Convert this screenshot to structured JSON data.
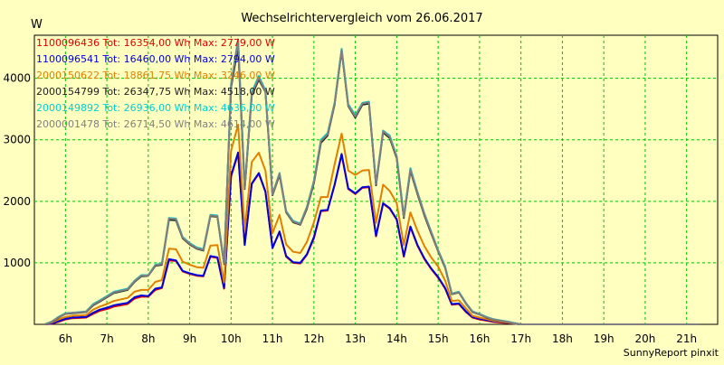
{
  "chart_data": {
    "type": "line",
    "title": "Wechselrichtervergleich vom 26.06.2017",
    "ylabel": "W",
    "footer": "SunnyReport pinxit",
    "grid": true,
    "legend_position": "top-left",
    "ylim": [
      0,
      4700
    ],
    "xlim": [
      5.25,
      21.75
    ],
    "yticks": [
      1000,
      2000,
      3000,
      4000
    ],
    "xticks": [
      "6h",
      "7h",
      "8h",
      "9h",
      "10h",
      "11h",
      "12h",
      "13h",
      "14h",
      "15h",
      "16h",
      "17h",
      "18h",
      "19h",
      "20h",
      "21h"
    ],
    "x": [
      5.5,
      5.67,
      5.83,
      6.0,
      6.17,
      6.5,
      6.67,
      6.83,
      7.0,
      7.17,
      7.5,
      7.67,
      7.83,
      8.0,
      8.17,
      8.33,
      8.5,
      8.67,
      8.83,
      9.0,
      9.17,
      9.33,
      9.5,
      9.67,
      9.83,
      10.0,
      10.17,
      10.33,
      10.5,
      10.67,
      10.83,
      11.0,
      11.17,
      11.33,
      11.5,
      11.67,
      11.83,
      12.0,
      12.17,
      12.33,
      12.5,
      12.67,
      12.83,
      13.0,
      13.17,
      13.33,
      13.5,
      13.67,
      13.83,
      14.0,
      14.17,
      14.33,
      14.5,
      14.67,
      14.83,
      15.0,
      15.17,
      15.33,
      15.5,
      15.67,
      15.83,
      16.0,
      16.17,
      16.33,
      16.5,
      16.67,
      16.83,
      17.0,
      17.17,
      17.33,
      17.5,
      17.67,
      17.83,
      18.0,
      18.17,
      18.33,
      18.5,
      18.67,
      18.83,
      19.0,
      19.17,
      19.33,
      19.5,
      19.67,
      19.83,
      20.0,
      20.17,
      20.33,
      20.5,
      20.67,
      20.83,
      21.0,
      21.17,
      21.33
    ],
    "series": [
      {
        "name": "1100096436",
        "legend": "1100096436 Tot: 16354,00 Wh Max: 2779,00 W",
        "color": "#e00000",
        "values": [
          0,
          10,
          40,
          80,
          100,
          110,
          170,
          220,
          250,
          290,
          330,
          420,
          450,
          450,
          560,
          590,
          1040,
          1030,
          860,
          820,
          790,
          780,
          1100,
          1080,
          580,
          2400,
          2779,
          1300,
          2280,
          2450,
          2150,
          1250,
          1500,
          1100,
          1000,
          990,
          1130,
          1400,
          1840,
          1850,
          2260,
          2760,
          2200,
          2120,
          2220,
          2230,
          1430,
          1960,
          1880,
          1700,
          1100,
          1580,
          1280,
          1060,
          900,
          760,
          580,
          320,
          330,
          200,
          110,
          80,
          60,
          40,
          30,
          20,
          10,
          0,
          0,
          0,
          0,
          0,
          0,
          0,
          0,
          0,
          0,
          0,
          0,
          0,
          0,
          0,
          0,
          0,
          0,
          0,
          0,
          0,
          0,
          0,
          0,
          0,
          0,
          0
        ]
      },
      {
        "name": "1100096541",
        "legend": "1100096541 Tot: 16460,00 Wh Max: 2794,00 W",
        "color": "#0000e0",
        "values": [
          0,
          15,
          50,
          90,
          110,
          120,
          190,
          240,
          270,
          310,
          350,
          440,
          470,
          460,
          580,
          600,
          1060,
          1040,
          870,
          830,
          800,
          790,
          1110,
          1090,
          590,
          2420,
          2794,
          1290,
          2290,
          2460,
          2160,
          1240,
          1510,
          1110,
          1010,
          1000,
          1140,
          1420,
          1850,
          1860,
          2270,
          2770,
          2210,
          2130,
          2230,
          2240,
          1440,
          1970,
          1890,
          1710,
          1110,
          1590,
          1290,
          1070,
          910,
          770,
          590,
          330,
          340,
          210,
          120,
          90,
          70,
          50,
          40,
          25,
          12,
          0,
          0,
          0,
          0,
          0,
          0,
          0,
          0,
          0,
          0,
          0,
          0,
          0,
          0,
          0,
          0,
          0,
          0,
          0,
          0,
          0,
          0,
          0,
          0,
          0,
          0,
          0
        ]
      },
      {
        "name": "2000150622",
        "legend": "2000150622 Tot: 18861,75 Wh Max: 3246,00 W",
        "color": "#e08000",
        "values": [
          0,
          30,
          80,
          120,
          140,
          150,
          240,
          290,
          330,
          380,
          430,
          530,
          560,
          560,
          690,
          720,
          1230,
          1220,
          1020,
          970,
          930,
          920,
          1280,
          1290,
          680,
          2820,
          3246,
          1540,
          2640,
          2790,
          2500,
          1480,
          1780,
          1300,
          1180,
          1160,
          1340,
          1660,
          2070,
          2070,
          2600,
          3100,
          2500,
          2430,
          2500,
          2510,
          1650,
          2270,
          2170,
          1970,
          1290,
          1820,
          1520,
          1270,
          1090,
          940,
          710,
          380,
          390,
          260,
          140,
          110,
          85,
          60,
          45,
          30,
          15,
          0,
          0,
          0,
          0,
          0,
          0,
          0,
          0,
          0,
          0,
          0,
          0,
          0,
          0,
          0,
          0,
          0,
          0,
          0,
          0,
          0,
          0,
          0,
          0,
          0,
          0,
          0
        ]
      },
      {
        "name": "2000154799",
        "legend": "2000154799 Tot: 26347,75 Wh Max: 4518,00 W",
        "color": "#202020",
        "values": [
          0,
          40,
          110,
          170,
          180,
          200,
          310,
          370,
          440,
          510,
          560,
          690,
          780,
          790,
          950,
          970,
          1700,
          1690,
          1400,
          1300,
          1230,
          1200,
          1760,
          1750,
          980,
          3850,
          4518,
          2200,
          3720,
          3980,
          3780,
          2100,
          2430,
          1820,
          1660,
          1620,
          1880,
          2300,
          2950,
          3070,
          3570,
          4450,
          3550,
          3360,
          3570,
          3590,
          2260,
          3120,
          3030,
          2700,
          1730,
          2500,
          2120,
          1770,
          1480,
          1190,
          920,
          490,
          520,
          340,
          200,
          160,
          110,
          80,
          60,
          40,
          20,
          0,
          0,
          0,
          0,
          0,
          0,
          0,
          0,
          0,
          0,
          0,
          0,
          0,
          0,
          0,
          0,
          0,
          0,
          0,
          0,
          0,
          0,
          0,
          0,
          0,
          0,
          0
        ]
      },
      {
        "name": "2000149892",
        "legend": "2000149892 Tot: 26936,00 Wh Max: 4636,00 W",
        "color": "#00d0d0",
        "values": [
          0,
          45,
          120,
          180,
          190,
          210,
          330,
          390,
          460,
          530,
          580,
          710,
          800,
          800,
          970,
          990,
          1730,
          1720,
          1420,
          1320,
          1250,
          1220,
          1780,
          1770,
          1000,
          3900,
          4636,
          2230,
          3770,
          4040,
          3800,
          2120,
          2460,
          1840,
          1680,
          1640,
          1910,
          2340,
          3000,
          3110,
          3600,
          4480,
          3580,
          3400,
          3600,
          3620,
          2290,
          3150,
          3070,
          2730,
          1760,
          2540,
          2150,
          1800,
          1510,
          1210,
          940,
          500,
          530,
          350,
          210,
          170,
          120,
          85,
          65,
          45,
          22,
          0,
          0,
          0,
          0,
          0,
          0,
          0,
          0,
          0,
          0,
          0,
          0,
          0,
          0,
          0,
          0,
          0,
          0,
          0,
          0,
          0,
          0,
          0,
          0,
          0,
          0,
          0
        ]
      },
      {
        "name": "2000001478",
        "legend": "2000001478 Tot: 26714,50 Wh Max: 4614,00 W",
        "color": "#808080",
        "values": [
          0,
          42,
          115,
          175,
          185,
          205,
          320,
          380,
          450,
          520,
          570,
          700,
          790,
          795,
          960,
          980,
          1720,
          1710,
          1410,
          1310,
          1240,
          1210,
          1770,
          1760,
          990,
          3880,
          4614,
          2210,
          3750,
          4010,
          3790,
          2110,
          2450,
          1830,
          1670,
          1630,
          1900,
          2320,
          2980,
          3090,
          3590,
          4460,
          3560,
          3380,
          3590,
          3610,
          2280,
          3140,
          3050,
          2720,
          1745,
          2520,
          2140,
          1790,
          1500,
          1200,
          930,
          495,
          525,
          345,
          205,
          165,
          115,
          82,
          62,
          42,
          21,
          0,
          0,
          0,
          0,
          0,
          0,
          0,
          0,
          0,
          0,
          0,
          0,
          0,
          0,
          0,
          0,
          0,
          0,
          0,
          0,
          0,
          0,
          0,
          0,
          0,
          0,
          0
        ]
      }
    ]
  }
}
